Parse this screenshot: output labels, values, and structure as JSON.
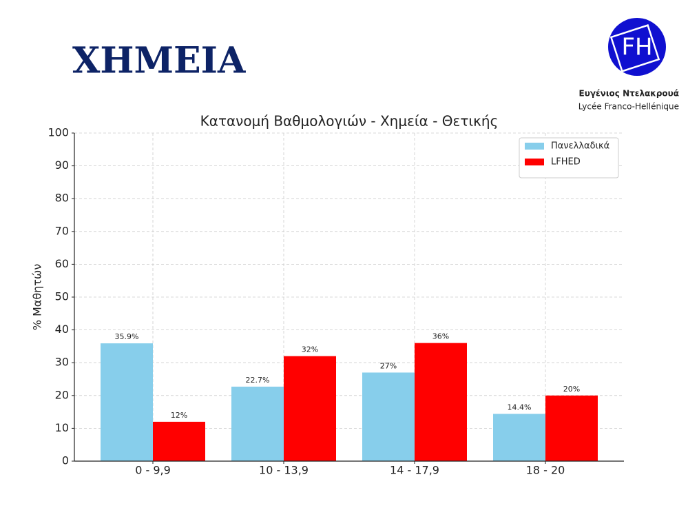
{
  "slide_title": "ΧΗΜΕΙΑ",
  "logo": {
    "mark": "FH",
    "name": "Ευγένιος Ντελακρουά",
    "school": "Lycée Franco-Hellénique"
  },
  "chart_data": {
    "type": "bar",
    "title": "Κατανομή Βαθμολογιών - Χημεία - Θετικής",
    "y_label": "% Μαθητών",
    "categories": [
      "0 - 9,9",
      "10 - 13,9",
      "14 - 17,9",
      "18 - 20"
    ],
    "series": [
      {
        "name": "Πανελλαδικά",
        "color": "#87ceeb",
        "values": [
          35.9,
          22.7,
          27,
          14.4
        ],
        "value_labels": [
          "35.9%",
          "22.7%",
          "27%",
          "14.4%"
        ]
      },
      {
        "name": "LFHED",
        "color": "#ff0000",
        "values": [
          12,
          32,
          36,
          20
        ],
        "value_labels": [
          "12%",
          "32%",
          "36%",
          "20%"
        ]
      }
    ],
    "ylim": [
      0,
      100
    ],
    "yticks": [
      0,
      10,
      20,
      30,
      40,
      50,
      60,
      70,
      80,
      90,
      100
    ],
    "grid": true,
    "legend": "upper right"
  }
}
